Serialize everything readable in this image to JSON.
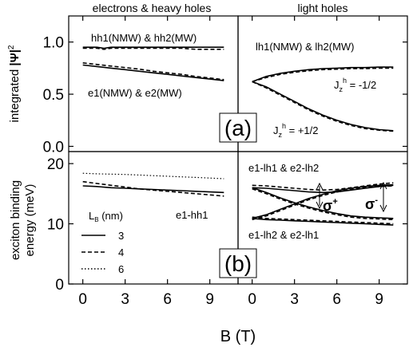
{
  "chart_data": [
    {
      "type": "line",
      "panel": "top-left",
      "header": "electrons & heavy holes",
      "ylabel_parts": [
        "integrated ",
        "|Ψ|",
        "2"
      ],
      "ylim": [
        -0.05,
        1.25
      ],
      "yticks": [
        "0.0",
        "0.5",
        "1.0"
      ],
      "ytick_values": [
        0.0,
        0.5,
        1.0
      ],
      "xlim": [
        -1,
        11
      ],
      "labels": [
        "hh1(NMW) & hh2(MW)",
        "e1(NMW) & e2(MW)"
      ],
      "series": [
        {
          "style": "solid",
          "x": [
            0,
            1,
            1.5,
            2,
            3,
            4,
            5,
            6,
            7,
            8,
            9,
            10
          ],
          "y": [
            0.95,
            0.95,
            0.94,
            0.95,
            0.95,
            0.95,
            0.95,
            0.95,
            0.95,
            0.95,
            0.95,
            0.95
          ]
        },
        {
          "style": "dashed",
          "x": [
            0,
            1,
            1.5,
            2,
            3,
            4,
            5,
            6,
            7,
            8,
            9,
            10
          ],
          "y": [
            0.94,
            0.94,
            0.93,
            0.94,
            0.94,
            0.94,
            0.94,
            0.94,
            0.94,
            0.93,
            0.93,
            0.93
          ]
        },
        {
          "style": "solid",
          "x": [
            0,
            1,
            2,
            3,
            4,
            5,
            6,
            7,
            8,
            9,
            10
          ],
          "y": [
            0.78,
            0.765,
            0.75,
            0.735,
            0.72,
            0.705,
            0.69,
            0.675,
            0.66,
            0.645,
            0.63
          ]
        },
        {
          "style": "dashed",
          "x": [
            0,
            1,
            2,
            3,
            4,
            5,
            6,
            7,
            8,
            9,
            10
          ],
          "y": [
            0.8,
            0.785,
            0.77,
            0.755,
            0.74,
            0.72,
            0.705,
            0.69,
            0.67,
            0.655,
            0.64
          ]
        }
      ]
    },
    {
      "type": "line",
      "panel": "top-right",
      "header": "light holes",
      "ylim": [
        -0.05,
        1.25
      ],
      "xlim": [
        -1,
        11
      ],
      "labels": [
        "lh1(NMW) & lh2(MW)"
      ],
      "jz_labels": [
        {
          "base": "J",
          "sub": "z",
          "sup": "h",
          "value": " = -1/2"
        },
        {
          "base": "J",
          "sub": "z",
          "sup": "h",
          "value": " = +1/2"
        }
      ],
      "panel_label": "(a)",
      "series": [
        {
          "style": "solid",
          "x": [
            0,
            1,
            2,
            3,
            4,
            5,
            6,
            7,
            8,
            9,
            10
          ],
          "y": [
            0.62,
            0.67,
            0.7,
            0.72,
            0.735,
            0.745,
            0.75,
            0.755,
            0.755,
            0.76,
            0.76
          ]
        },
        {
          "style": "dashed",
          "x": [
            0,
            1,
            2,
            3,
            4,
            5,
            6,
            7,
            8,
            9,
            10
          ],
          "y": [
            0.62,
            0.66,
            0.69,
            0.71,
            0.725,
            0.735,
            0.74,
            0.745,
            0.745,
            0.75,
            0.75
          ]
        },
        {
          "style": "solid",
          "x": [
            0,
            1,
            2,
            3,
            4,
            5,
            6,
            7,
            8,
            9,
            10
          ],
          "y": [
            0.62,
            0.57,
            0.5,
            0.43,
            0.36,
            0.3,
            0.25,
            0.21,
            0.18,
            0.16,
            0.15
          ]
        },
        {
          "style": "dashed",
          "x": [
            0,
            1,
            2,
            3,
            4,
            5,
            6,
            7,
            8,
            9,
            10
          ],
          "y": [
            0.62,
            0.56,
            0.49,
            0.42,
            0.35,
            0.29,
            0.24,
            0.2,
            0.17,
            0.155,
            0.145
          ]
        }
      ]
    },
    {
      "type": "line",
      "panel": "bottom-left",
      "ylabel": "exciton binding energy (meV)",
      "ylim": [
        0,
        22
      ],
      "yticks": [
        "0",
        "10",
        "20"
      ],
      "ytick_values": [
        0,
        10,
        20
      ],
      "xlim": [
        -1,
        11
      ],
      "xticks": [
        "0",
        "3",
        "6",
        "9"
      ],
      "xtick_values": [
        0,
        3,
        6,
        9
      ],
      "labels": [
        "e1-hh1"
      ],
      "legend_title": {
        "base": "L",
        "sub": "B",
        "unit": " (nm)"
      },
      "legend": [
        {
          "label": "3",
          "style": "solid"
        },
        {
          "label": "4",
          "style": "dashed"
        },
        {
          "label": "6",
          "style": "dotted"
        }
      ],
      "panel_label": "(b)",
      "series": [
        {
          "name": "3",
          "style": "solid",
          "x": [
            0,
            1,
            2,
            3,
            4,
            5,
            6,
            7,
            8,
            9,
            10
          ],
          "y": [
            16.3,
            16.2,
            16.0,
            15.9,
            15.8,
            15.7,
            15.6,
            15.5,
            15.4,
            15.3,
            15.2
          ]
        },
        {
          "name": "4",
          "style": "dashed",
          "x": [
            0,
            1,
            2,
            3,
            4,
            5,
            6,
            7,
            8,
            9,
            10
          ],
          "y": [
            17.0,
            16.7,
            16.4,
            16.1,
            15.8,
            15.6,
            15.4,
            15.2,
            15.0,
            14.8,
            14.6
          ]
        },
        {
          "name": "6",
          "style": "dotted",
          "x": [
            0,
            1,
            2,
            3,
            4,
            5,
            6,
            7,
            8,
            9,
            10
          ],
          "y": [
            18.4,
            18.3,
            18.25,
            18.2,
            18.1,
            18.0,
            17.9,
            17.8,
            17.7,
            17.6,
            17.5
          ]
        }
      ]
    },
    {
      "type": "line",
      "panel": "bottom-right",
      "ylim": [
        0,
        22
      ],
      "xlim": [
        -1,
        11
      ],
      "xticks": [
        "0",
        "3",
        "6",
        "9"
      ],
      "xtick_values": [
        0,
        3,
        6,
        9
      ],
      "labels": [
        "e1-lh1 & e2-lh2",
        "e1-lh2 & e2-lh1"
      ],
      "sigma_labels": [
        {
          "base": "σ",
          "sup": "+"
        },
        {
          "base": "σ",
          "sup": "-"
        }
      ],
      "xlabel": "B (T)",
      "series": [
        {
          "style": "solid",
          "x": [
            0,
            1,
            2,
            3,
            4,
            5,
            6,
            7,
            8,
            9,
            10
          ],
          "y": [
            16.0,
            15.9,
            15.7,
            15.5,
            15.3,
            15.2,
            15.3,
            15.6,
            15.9,
            16.2,
            16.4
          ]
        },
        {
          "style": "dashed",
          "x": [
            0,
            1,
            2,
            3,
            4,
            5,
            6,
            7,
            8,
            9,
            10
          ],
          "y": [
            16.4,
            16.3,
            16.1,
            15.9,
            15.7,
            15.6,
            15.7,
            16.0,
            16.3,
            16.6,
            16.8
          ]
        },
        {
          "style": "solid",
          "x": [
            0,
            1,
            2,
            3,
            4,
            5,
            6,
            7,
            8,
            9,
            10
          ],
          "y": [
            16.0,
            15.2,
            14.3,
            13.5,
            12.8,
            12.2,
            11.7,
            11.3,
            11.1,
            11.0,
            10.9
          ]
        },
        {
          "style": "dashed",
          "x": [
            0,
            1,
            2,
            3,
            4,
            5,
            6,
            7,
            8,
            9,
            10
          ],
          "y": [
            15.8,
            15.0,
            14.1,
            13.3,
            12.6,
            12.0,
            11.5,
            11.1,
            10.9,
            10.8,
            10.7
          ]
        },
        {
          "style": "solid",
          "x": [
            0,
            1,
            2,
            3,
            4,
            5,
            6,
            7,
            8,
            9,
            10
          ],
          "y": [
            10.9,
            11.5,
            12.4,
            13.3,
            14.2,
            14.9,
            15.5,
            15.9,
            16.2,
            16.4,
            16.5
          ]
        },
        {
          "style": "dashed",
          "x": [
            0,
            1,
            2,
            3,
            4,
            5,
            6,
            7,
            8,
            9,
            10
          ],
          "y": [
            10.7,
            11.3,
            12.2,
            13.1,
            14.0,
            14.7,
            15.3,
            15.7,
            16.0,
            16.2,
            16.3
          ]
        },
        {
          "style": "solid",
          "x": [
            0,
            1,
            2,
            3,
            4,
            5,
            6,
            7,
            8,
            9,
            10
          ],
          "y": [
            10.9,
            10.7,
            10.6,
            10.5,
            10.4,
            10.3,
            10.2,
            10.1,
            10.0,
            9.9,
            9.8
          ]
        },
        {
          "style": "dashed",
          "x": [
            0,
            1,
            2,
            3,
            4,
            5,
            6,
            7,
            8,
            9,
            10
          ],
          "y": [
            11.1,
            10.9,
            10.8,
            10.7,
            10.6,
            10.5,
            10.4,
            10.3,
            10.2,
            10.1,
            10.0
          ]
        }
      ]
    }
  ]
}
